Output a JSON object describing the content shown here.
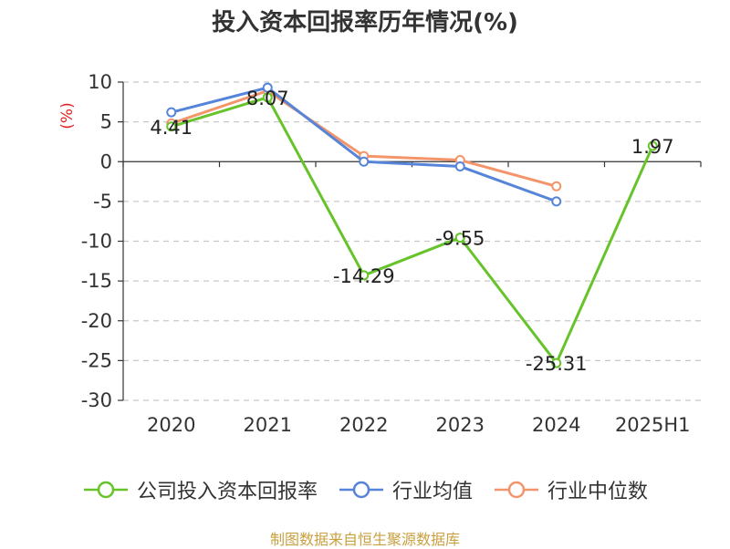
{
  "title": "投入资本回报率历年情况(%)",
  "source": "制图数据来自恒生聚源数据库",
  "colors": {
    "company": "#66c32a",
    "industry_avg": "#5584d9",
    "industry_median": "#f4946a",
    "axis": "#333333",
    "grid": "#c8c8c8",
    "unit": "#e02020"
  },
  "chart_data": {
    "type": "line",
    "title": "投入资本回报率历年情况(%)",
    "ylabel": "(%)",
    "ylim": [
      -30,
      10
    ],
    "yticks": [
      "10",
      "5",
      "0",
      "-5",
      "-10",
      "-15",
      "-20",
      "-25",
      "-30"
    ],
    "categories": [
      "2020",
      "2021",
      "2022",
      "2023",
      "2024",
      "2025H1"
    ],
    "grid": "horizontal dashed",
    "legend_position": "bottom",
    "series": [
      {
        "name": "公司投入资本回报率",
        "values": [
          4.41,
          8.07,
          -14.29,
          -9.55,
          -25.31,
          1.97
        ],
        "data_labels": [
          "4.41",
          "8.07",
          "-14.29",
          "-9.55",
          "-25.31",
          "1.97"
        ]
      },
      {
        "name": "行业均值",
        "values": [
          6.2,
          9.3,
          0.0,
          -0.6,
          -5.0,
          null
        ]
      },
      {
        "name": "行业中位数",
        "values": [
          4.8,
          8.9,
          0.7,
          0.2,
          -3.1,
          null
        ]
      }
    ]
  }
}
